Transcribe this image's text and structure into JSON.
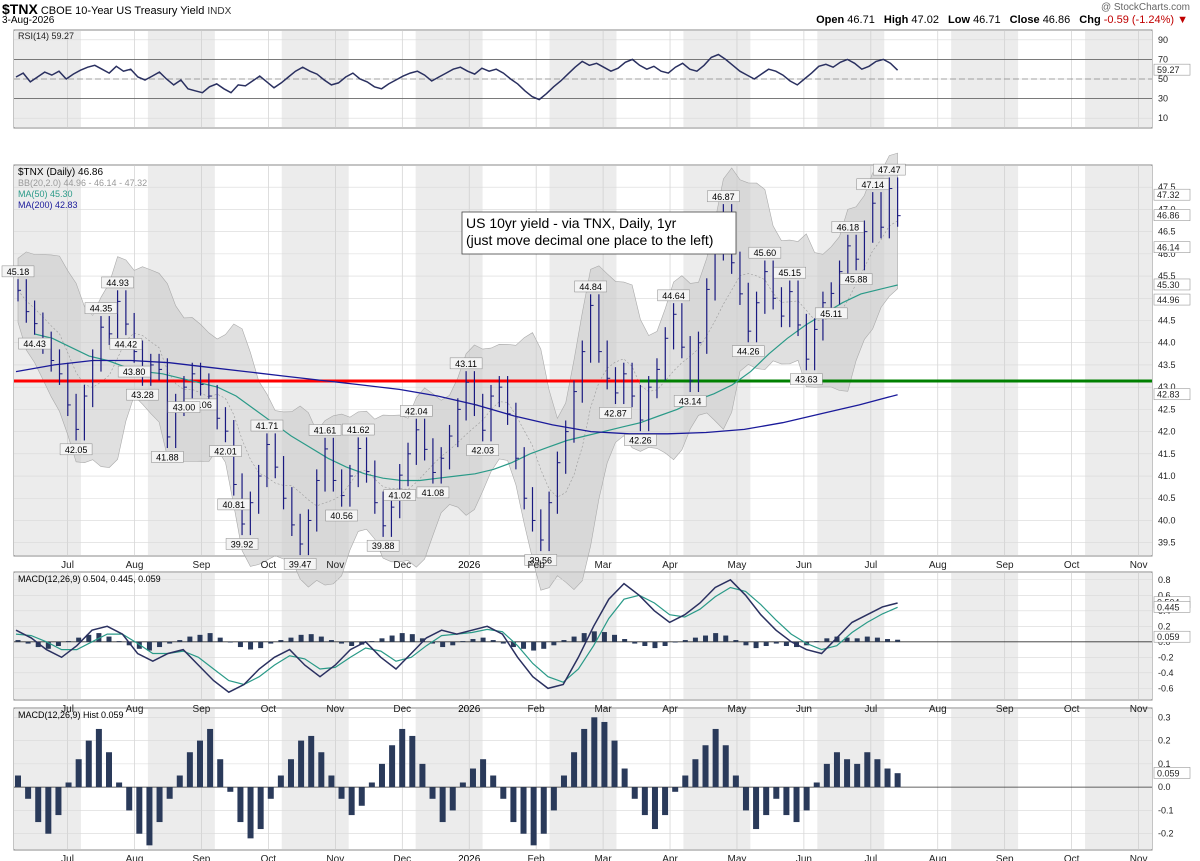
{
  "header": {
    "symbol": "$TNX",
    "name": "CBOE 10-Year US Treasury Yield",
    "exchange": "INDX",
    "date": "3-Aug-2026",
    "watermark": "@ StockCharts.com",
    "ohlc": {
      "open_label": "Open",
      "open": "46.71",
      "high_label": "High",
      "high": "47.02",
      "low_label": "Low",
      "low": "46.71",
      "close_label": "Close",
      "close": "46.86",
      "chg_label": "Chg",
      "chg": "-0.59 (-1.24%)"
    }
  },
  "colors": {
    "price": "#1a1a80",
    "ma50": "#2a9a88",
    "ma200": "#1a1a9a",
    "band": "#cccccc",
    "hline_red": "#ff0000",
    "hline_green": "#008000",
    "macd": "#2a3060",
    "signal": "#2a9a88",
    "hist": "#2a3a5a"
  },
  "chart_data": [
    {
      "type": "line",
      "panel": "RSI",
      "title": "RSI(14) 59.27",
      "ylim": [
        0,
        100
      ],
      "yticks": [
        10,
        30,
        50,
        70,
        90
      ],
      "reference_lines": [
        30,
        70
      ],
      "last_label": "59.27",
      "values": [
        52,
        56,
        47,
        52,
        57,
        54,
        58,
        50,
        55,
        59,
        62,
        64,
        60,
        56,
        63,
        58,
        60,
        52,
        49,
        53,
        57,
        50,
        44,
        49,
        40,
        38,
        36,
        42,
        45,
        40,
        36,
        44,
        43,
        48,
        53,
        47,
        41,
        46,
        52,
        58,
        62,
        58,
        55,
        49,
        44,
        46,
        52,
        56,
        50,
        47,
        42,
        40,
        45,
        49,
        53,
        56,
        58,
        54,
        48,
        52,
        56,
        60,
        62,
        58,
        55,
        61,
        58,
        60,
        56,
        50,
        45,
        38,
        32,
        29,
        35,
        42,
        48,
        55,
        62,
        68,
        64,
        66,
        62,
        58,
        61,
        67,
        70,
        64,
        60,
        63,
        58,
        56,
        62,
        66,
        60,
        58,
        64,
        72,
        75,
        70,
        64,
        58,
        54,
        50,
        55,
        60,
        58,
        54,
        48,
        44,
        50,
        56,
        63,
        65,
        62,
        67,
        70,
        66,
        60,
        63,
        68,
        70,
        66,
        59
      ],
      "x_labels": [
        "Jul",
        "Aug",
        "Sep",
        "Oct",
        "Nov",
        "Dec",
        "2026",
        "Feb",
        "Mar",
        "Apr",
        "May",
        "Jun",
        "Jul",
        "Aug",
        "Sep",
        "Oct",
        "Nov"
      ]
    },
    {
      "type": "line",
      "panel": "Price",
      "title": "$TNX (Daily) 46.86",
      "bb_label": "BB(20,2.0) 44.96 - 46.14 - 47.32",
      "ma50_label": "MA(50) 45.30",
      "ma200_label": "MA(200) 42.83",
      "ylim": [
        39.2,
        48.0
      ],
      "yticks": [
        39.5,
        40.0,
        40.5,
        41.0,
        41.5,
        42.0,
        42.5,
        43.0,
        43.5,
        44.0,
        44.5,
        45.0,
        45.5,
        46.0,
        46.5,
        47.0,
        47.5
      ],
      "series": [
        {
          "name": "$TNX",
          "values": [
            45.18,
            44.7,
            44.43,
            44.0,
            43.6,
            43.3,
            42.6,
            42.05,
            42.8,
            43.6,
            44.35,
            44.2,
            44.93,
            44.42,
            43.8,
            43.28,
            43.5,
            43.4,
            41.88,
            42.6,
            43.0,
            43.3,
            43.06,
            42.8,
            42.3,
            42.01,
            40.81,
            39.92,
            40.4,
            41.0,
            41.71,
            41.2,
            40.5,
            39.9,
            39.47,
            40.0,
            40.9,
            41.61,
            40.9,
            40.56,
            41.0,
            41.62,
            41.1,
            40.4,
            39.88,
            40.3,
            41.02,
            41.5,
            42.04,
            41.6,
            41.08,
            41.4,
            41.9,
            42.5,
            43.11,
            42.6,
            42.03,
            42.8,
            43.0,
            42.4,
            41.4,
            40.5,
            40.0,
            39.56,
            40.4,
            41.3,
            42.0,
            42.9,
            43.8,
            44.84,
            43.8,
            43.2,
            42.87,
            43.3,
            42.8,
            42.26,
            43.0,
            43.4,
            44.1,
            44.64,
            43.9,
            43.14,
            44.0,
            45.2,
            46.1,
            46.87,
            45.8,
            45.1,
            44.26,
            44.9,
            45.6,
            45.0,
            44.6,
            45.15,
            44.4,
            43.63,
            44.3,
            44.9,
            45.11,
            45.6,
            46.18,
            45.88,
            46.5,
            47.14,
            46.6,
            47.47,
            46.86
          ]
        },
        {
          "name": "MA(50)",
          "values": [
            44.2,
            44.1,
            43.9,
            43.7,
            43.6,
            43.45,
            43.35,
            43.3,
            43.2,
            43.1,
            43.0,
            42.8,
            42.5,
            42.2,
            41.9,
            41.65,
            41.4,
            41.2,
            41.05,
            40.95,
            40.9,
            40.9,
            40.95,
            41.0,
            41.05,
            41.15,
            41.3,
            41.5,
            41.65,
            41.8,
            41.9,
            42.0,
            42.1,
            42.2,
            42.35,
            42.5,
            42.7,
            42.85,
            43.05,
            43.35,
            43.75,
            44.1,
            44.4,
            44.65,
            44.9,
            45.1,
            45.2,
            45.3
          ]
        },
        {
          "name": "MA(200)",
          "values": [
            43.35,
            43.5,
            43.6,
            43.6,
            43.55,
            43.45,
            43.35,
            43.25,
            43.15,
            43.05,
            42.95,
            42.8,
            42.6,
            42.35,
            42.15,
            42.0,
            41.95,
            41.95,
            41.98,
            42.05,
            42.2,
            42.4,
            42.6,
            42.83
          ]
        }
      ],
      "price_labels": [
        "45.18",
        "44.43",
        "44.35",
        "44.93",
        "44.42",
        "43.28",
        "42.05",
        "41.88",
        "43.06",
        "42.01",
        "40.81",
        "39.92",
        "41.71",
        "39.47",
        "41.61",
        "40.56",
        "41.62",
        "39.88",
        "42.04",
        "41.02",
        "41.08",
        "43.11",
        "43.00",
        "42.03",
        "39.56",
        "44.84",
        "43.80",
        "42.87",
        "42.26",
        "44.64",
        "43.14",
        "46.87",
        "45.60",
        "44.26",
        "45.15",
        "43.63",
        "46.18",
        "45.88",
        "45.11",
        "47.14",
        "47.47"
      ],
      "reference_lines": [
        {
          "value": 43.14,
          "color": "red",
          "extent": "to Mar"
        },
        {
          "value": 43.14,
          "color": "green",
          "extent": "Mar to end"
        }
      ],
      "right_labels": [
        "47.32",
        "46.86",
        "46.14",
        "45.30",
        "44.96",
        "42.83"
      ],
      "annotation": [
        "US 10yr yield - via TNX, Daily, 1yr",
        "(just move decimal one place to the left)"
      ]
    },
    {
      "type": "line",
      "panel": "MACD",
      "title": "MACD(12,26,9) 0.504, 0.445, 0.059",
      "ylim": [
        -0.75,
        0.9
      ],
      "yticks": [
        -0.6,
        -0.4,
        -0.2,
        0.0,
        0.2,
        0.4,
        0.6,
        0.8
      ],
      "right_labels": [
        "0.504",
        "0.445",
        "0.059"
      ],
      "series": [
        {
          "name": "MACD",
          "values": [
            0.15,
            0.05,
            -0.1,
            -0.2,
            -0.05,
            0.15,
            0.2,
            0.1,
            -0.15,
            -0.25,
            -0.15,
            -0.1,
            -0.3,
            -0.5,
            -0.65,
            -0.55,
            -0.35,
            -0.2,
            -0.1,
            -0.3,
            -0.45,
            -0.3,
            -0.1,
            0.0,
            -0.2,
            -0.35,
            -0.15,
            0.05,
            0.15,
            0.1,
            0.15,
            0.2,
            0.1,
            -0.2,
            -0.45,
            -0.6,
            -0.55,
            -0.2,
            0.2,
            0.55,
            0.75,
            0.6,
            0.4,
            0.25,
            0.35,
            0.5,
            0.7,
            0.8,
            0.6,
            0.35,
            0.15,
            0.0,
            -0.1,
            -0.15,
            0.05,
            0.25,
            0.35,
            0.45,
            0.5
          ]
        },
        {
          "name": "Signal",
          "values": [
            0.1,
            0.08,
            0.0,
            -0.1,
            -0.1,
            0.0,
            0.1,
            0.1,
            -0.02,
            -0.15,
            -0.15,
            -0.12,
            -0.2,
            -0.35,
            -0.5,
            -0.55,
            -0.45,
            -0.3,
            -0.18,
            -0.22,
            -0.35,
            -0.33,
            -0.2,
            -0.08,
            -0.12,
            -0.25,
            -0.2,
            -0.05,
            0.08,
            0.1,
            0.12,
            0.16,
            0.13,
            -0.05,
            -0.28,
            -0.45,
            -0.52,
            -0.35,
            -0.05,
            0.3,
            0.55,
            0.6,
            0.5,
            0.35,
            0.32,
            0.42,
            0.58,
            0.7,
            0.65,
            0.48,
            0.28,
            0.1,
            -0.02,
            -0.1,
            -0.05,
            0.12,
            0.25,
            0.36,
            0.445
          ]
        }
      ],
      "last_label": "0.059"
    },
    {
      "type": "bar",
      "panel": "MACD Hist",
      "title": "MACD(12,26,9) Hist 0.059",
      "ylim": [
        -0.27,
        0.34
      ],
      "yticks": [
        -0.2,
        -0.1,
        0.0,
        0.1,
        0.2,
        0.3
      ],
      "right_labels": [
        "0.059"
      ],
      "values": [
        0.05,
        -0.05,
        -0.15,
        -0.2,
        -0.12,
        0.02,
        0.12,
        0.2,
        0.25,
        0.15,
        0.02,
        -0.1,
        -0.2,
        -0.25,
        -0.15,
        -0.05,
        0.05,
        0.15,
        0.2,
        0.25,
        0.12,
        -0.02,
        -0.15,
        -0.22,
        -0.18,
        -0.05,
        0.05,
        0.12,
        0.2,
        0.22,
        0.15,
        0.05,
        -0.05,
        -0.12,
        -0.08,
        0.02,
        0.1,
        0.18,
        0.25,
        0.22,
        0.1,
        -0.05,
        -0.15,
        -0.1,
        0.02,
        0.08,
        0.12,
        0.05,
        -0.05,
        -0.15,
        -0.2,
        -0.25,
        -0.2,
        -0.1,
        0.05,
        0.15,
        0.25,
        0.3,
        0.28,
        0.2,
        0.08,
        -0.05,
        -0.12,
        -0.18,
        -0.12,
        -0.02,
        0.05,
        0.12,
        0.18,
        0.25,
        0.18,
        0.05,
        -0.1,
        -0.18,
        -0.12,
        -0.05,
        -0.12,
        -0.15,
        -0.1,
        0.02,
        0.1,
        0.15,
        0.12,
        0.1,
        0.15,
        0.12,
        0.08,
        0.06
      ]
    }
  ]
}
